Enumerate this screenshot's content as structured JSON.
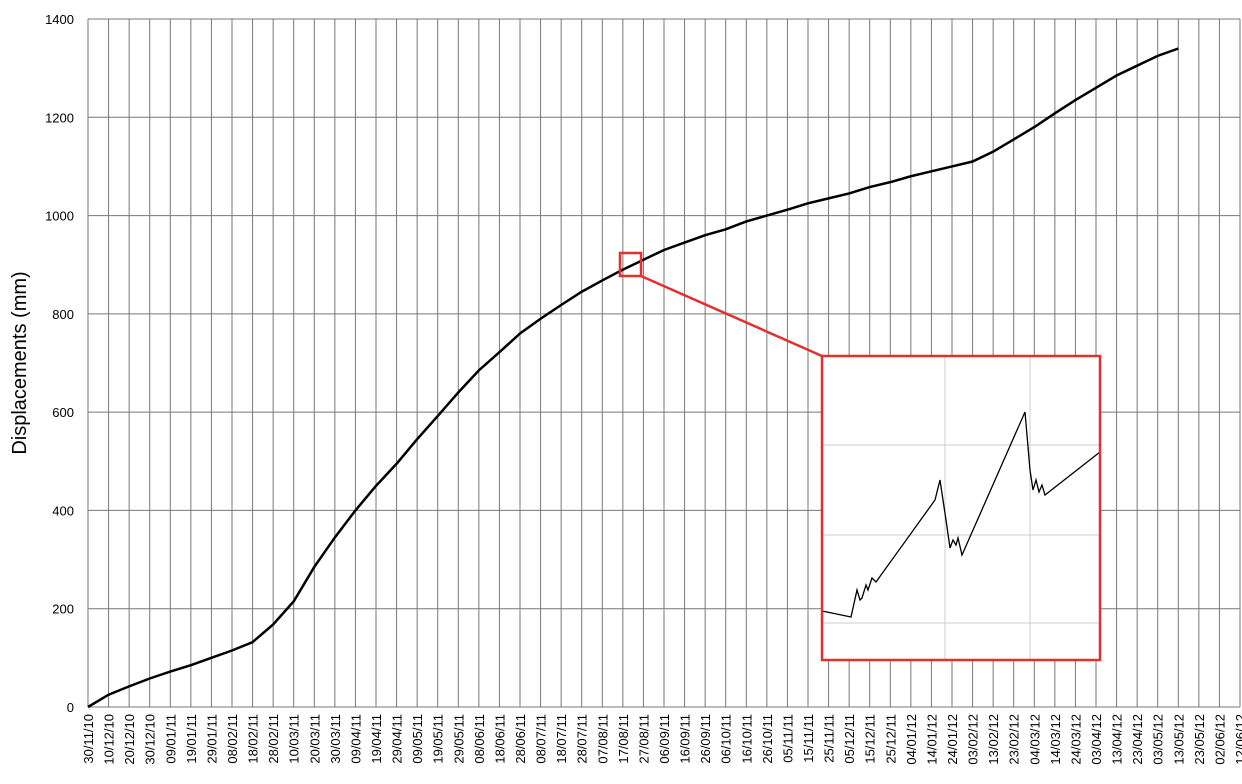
{
  "chart_data": {
    "type": "line",
    "y_label": "Displacements (mm)",
    "categories": [
      "30/11/10",
      "10/12/10",
      "20/12/10",
      "30/12/10",
      "09/01/11",
      "19/01/11",
      "29/01/11",
      "08/02/11",
      "18/02/11",
      "28/02/11",
      "10/03/11",
      "20/03/11",
      "30/03/11",
      "09/04/11",
      "19/04/11",
      "29/04/11",
      "09/05/11",
      "19/05/11",
      "29/05/11",
      "08/06/11",
      "18/06/11",
      "28/06/11",
      "08/07/11",
      "18/07/11",
      "28/07/11",
      "07/08/11",
      "17/08/11",
      "27/08/11",
      "06/09/11",
      "16/09/11",
      "26/09/11",
      "06/10/11",
      "16/10/11",
      "26/10/11",
      "05/11/11",
      "15/11/11",
      "25/11/11",
      "05/12/11",
      "15/12/11",
      "25/12/11",
      "04/01/12",
      "14/01/12",
      "24/01/12",
      "03/02/12",
      "13/02/12",
      "23/02/12",
      "04/03/12",
      "14/03/12",
      "24/03/12",
      "03/04/12",
      "13/04/12",
      "23/04/12",
      "03/05/12",
      "13/05/12",
      "23/05/12",
      "02/06/12",
      "12/06/12"
    ],
    "values": [
      0,
      25,
      42,
      58,
      72,
      85,
      100,
      115,
      132,
      168,
      215,
      285,
      345,
      400,
      450,
      495,
      545,
      592,
      640,
      685,
      722,
      760,
      790,
      818,
      845,
      868,
      890,
      910,
      930,
      945,
      960,
      972,
      988,
      1000,
      1012,
      1025,
      1035,
      1045,
      1058,
      1068,
      1080,
      1090,
      1100,
      1110,
      1130,
      1155,
      1180,
      1208,
      1235,
      1260,
      1285,
      1305,
      1325,
      1340,
      null,
      null,
      null
    ],
    "color": "#000000",
    "ylim": [
      0,
      1400
    ],
    "yticks": [
      0,
      200,
      400,
      600,
      800,
      1000,
      1200,
      1400
    ],
    "grid": true
  }
}
